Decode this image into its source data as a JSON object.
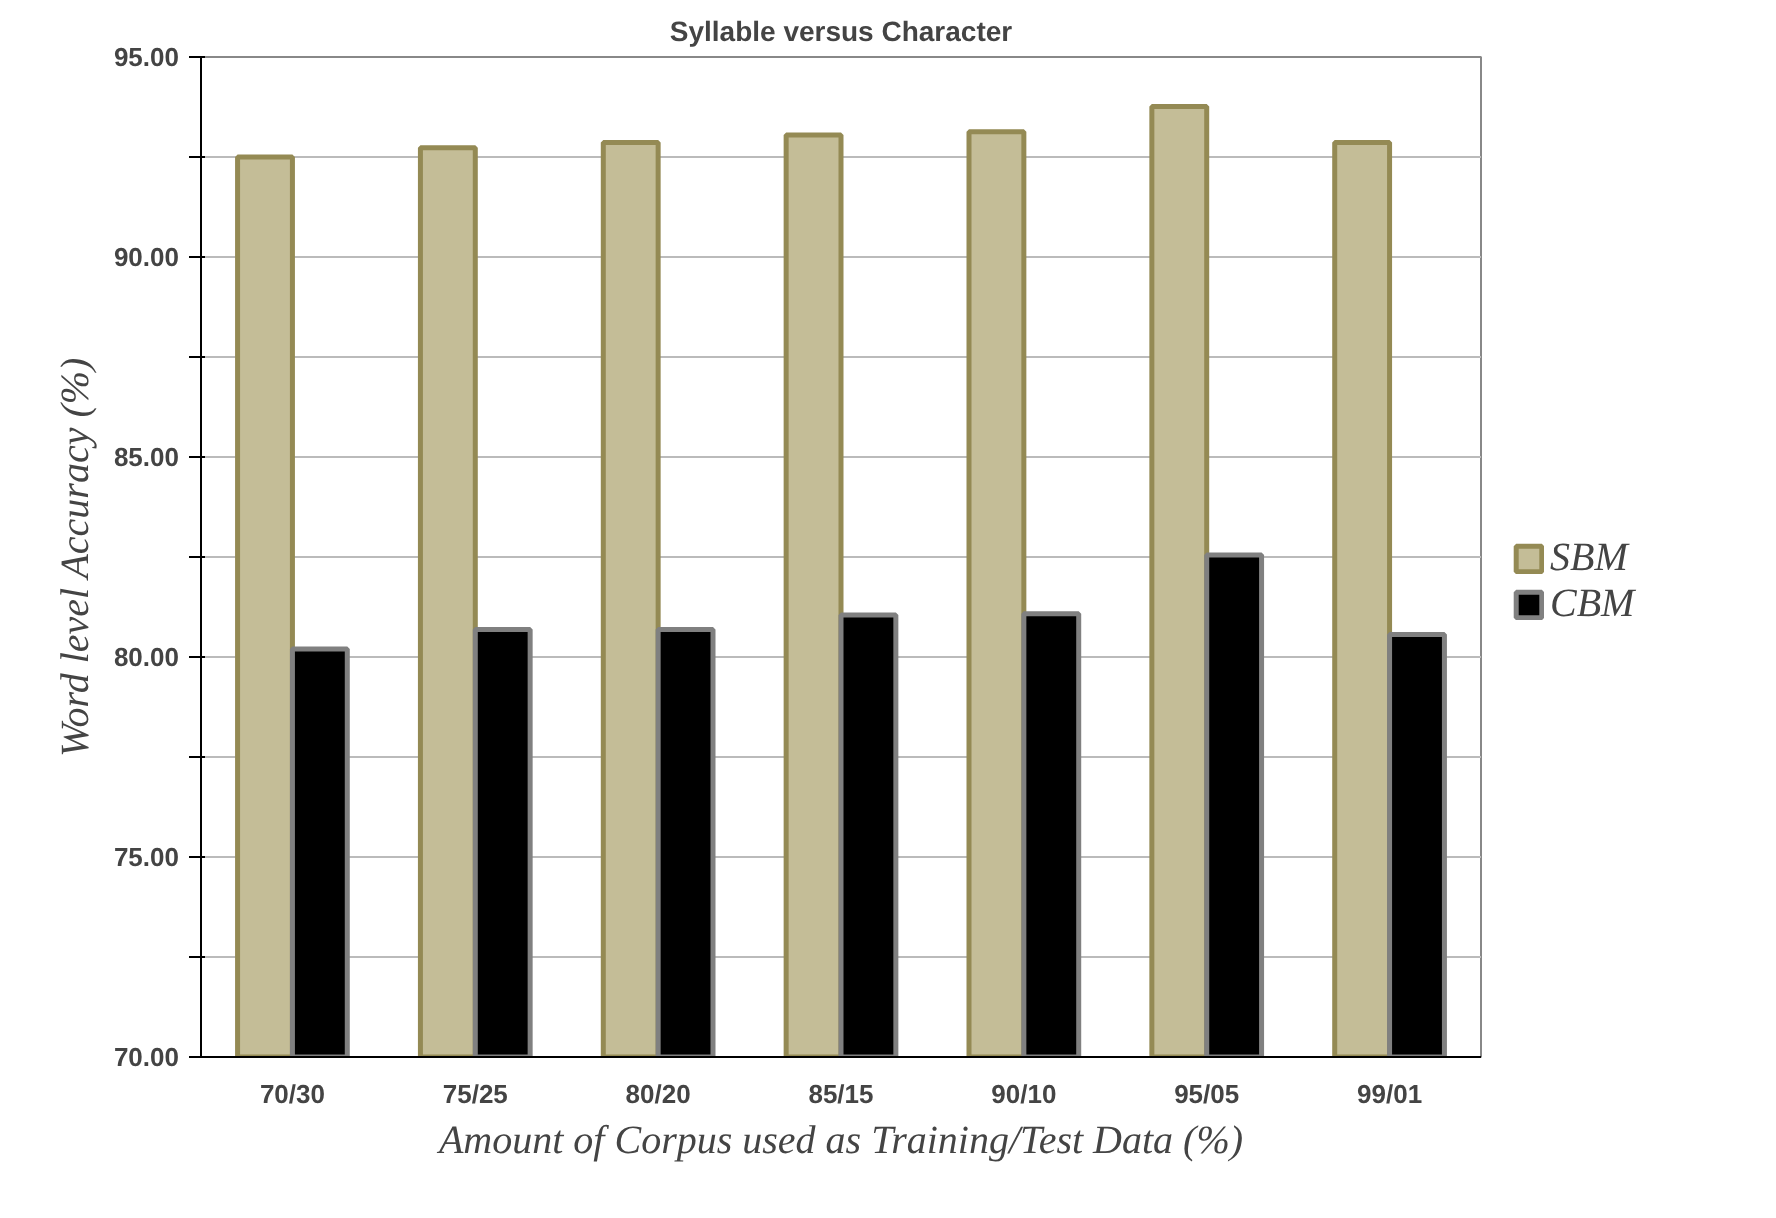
{
  "chart_data": {
    "type": "bar",
    "title": "Syllable versus Character",
    "xlabel": "Amount of Corpus used as Training/Test Data (%)",
    "ylabel": "Word level Accuracy (%)",
    "categories": [
      "70/30",
      "75/25",
      "80/20",
      "85/15",
      "90/10",
      "95/05",
      "99/01"
    ],
    "series": [
      {
        "name": "SBM",
        "color": "#c4bd97",
        "values": [
          92.5,
          92.73,
          92.86,
          93.05,
          93.13,
          93.76,
          92.86
        ]
      },
      {
        "name": "CBM",
        "color": "#000000",
        "values": [
          80.2,
          80.69,
          80.69,
          81.05,
          81.08,
          82.55,
          80.56
        ]
      }
    ],
    "ylim": [
      70,
      95
    ],
    "yticks": [
      {
        "value": 70,
        "label": "70.00"
      },
      {
        "value": 72.5,
        "label": null
      },
      {
        "value": 75,
        "label": "75.00"
      },
      {
        "value": 77.5,
        "label": null
      },
      {
        "value": 80,
        "label": "80.00"
      },
      {
        "value": 82.5,
        "label": null
      },
      {
        "value": 85,
        "label": "85.00"
      },
      {
        "value": 87.5,
        "label": null
      },
      {
        "value": 90,
        "label": "90.00"
      },
      {
        "value": 92.5,
        "label": null
      },
      {
        "value": 95,
        "label": "95.00"
      }
    ],
    "grid": "y",
    "legend": "right"
  }
}
